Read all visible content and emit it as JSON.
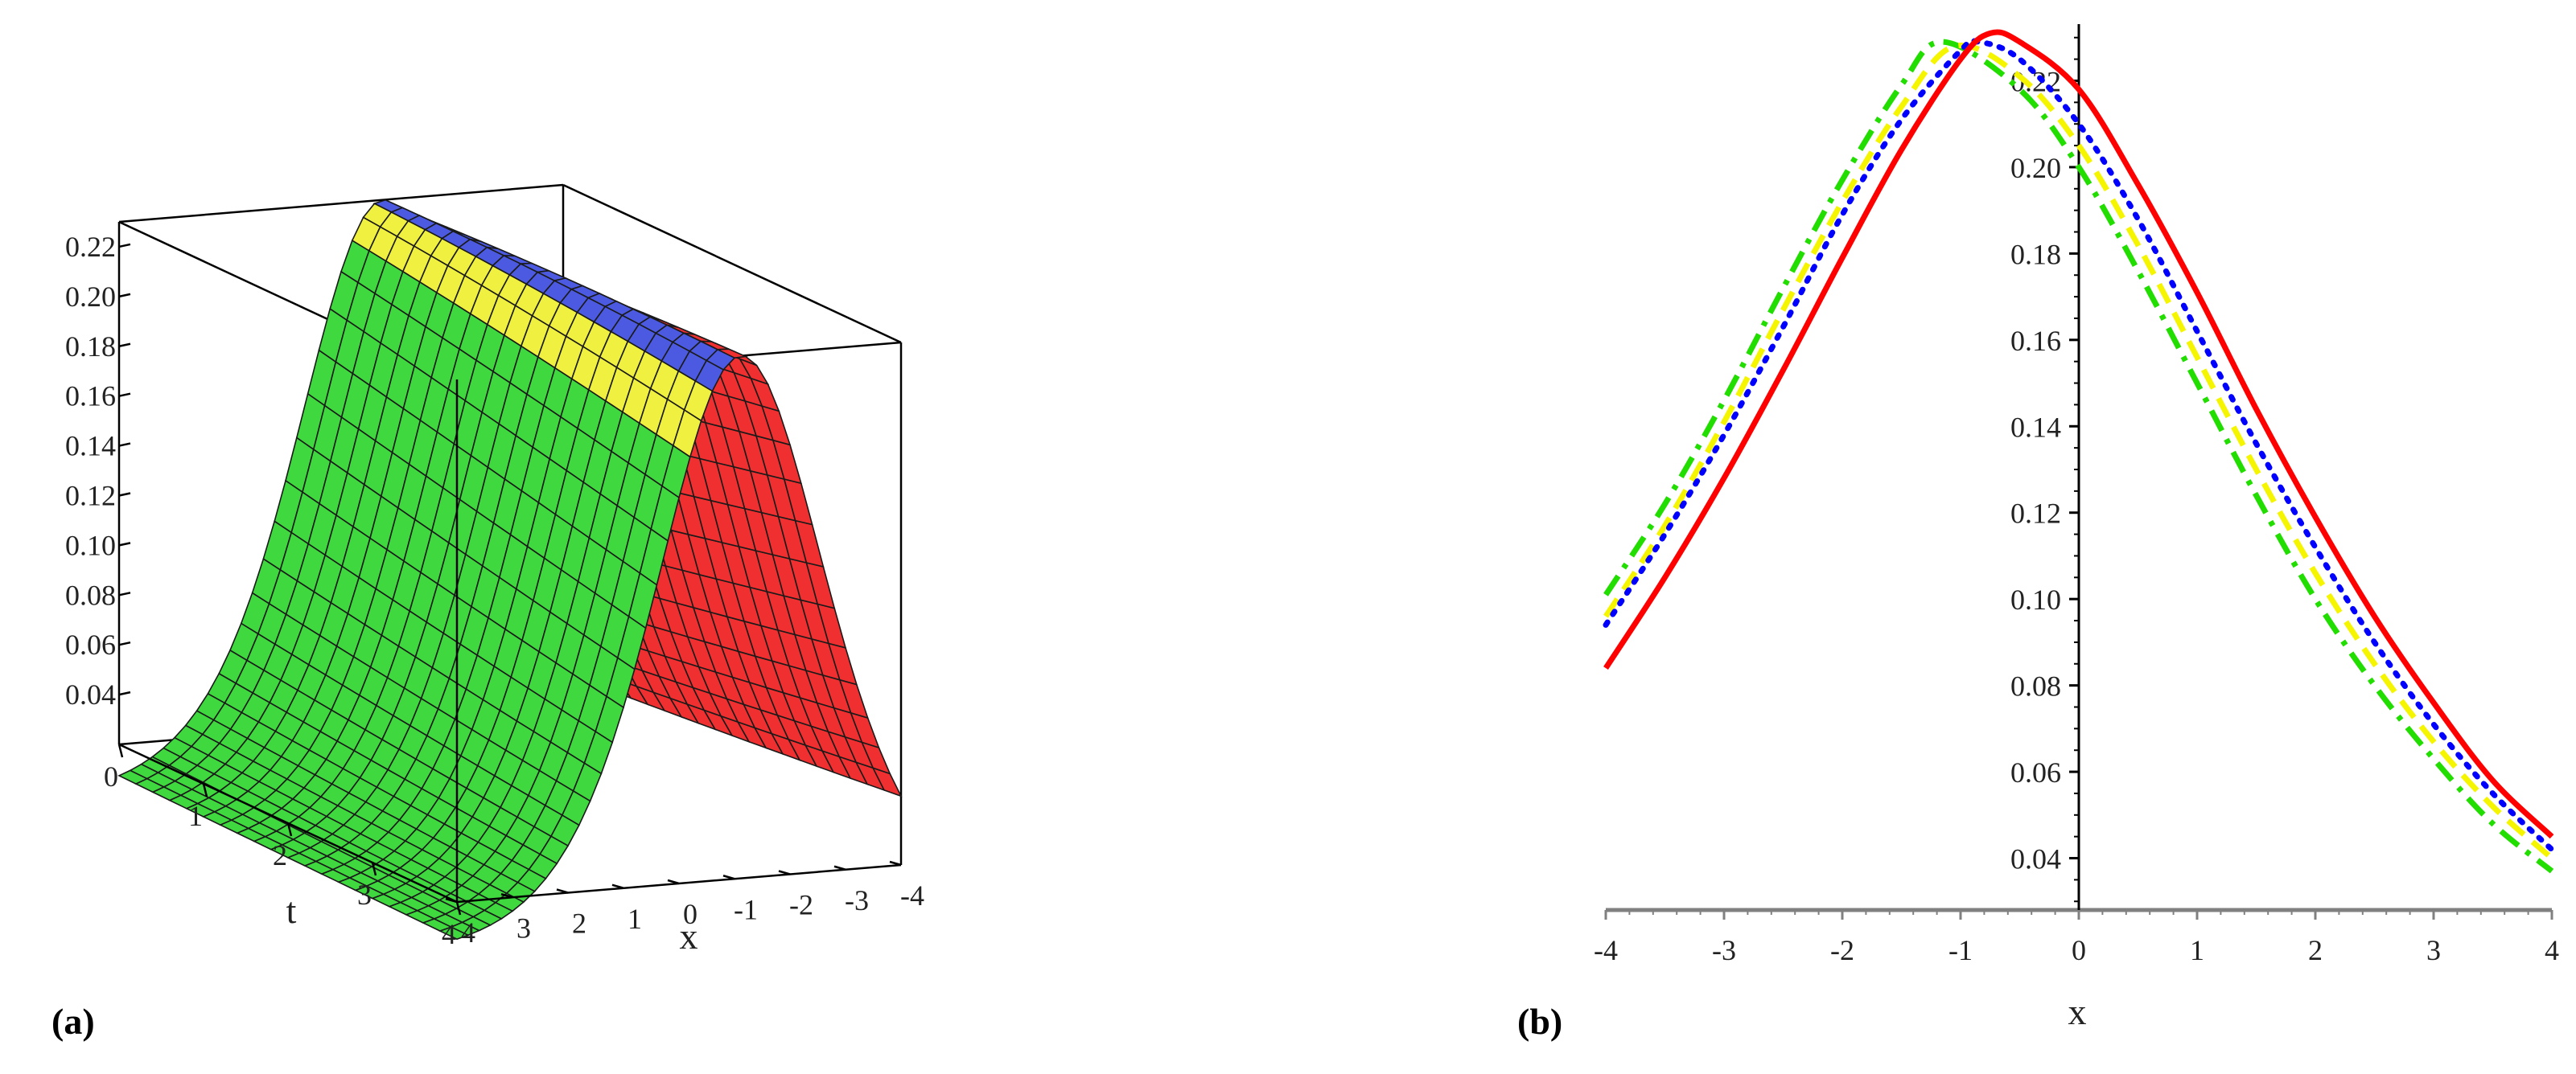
{
  "panel_a": {
    "label": "(a)"
  },
  "panel_b": {
    "label": "(b)"
  },
  "chart_data": [
    {
      "type": "surface",
      "xlabel": "x",
      "ylabel": "t",
      "zlabel": "",
      "xlim": [
        -4,
        4
      ],
      "tlim": [
        0,
        4
      ],
      "zlim": [
        0.02,
        0.23
      ],
      "x_ticks": [
        "-4",
        "-3",
        "-2",
        "-1",
        "0",
        "1",
        "2",
        "3",
        "4"
      ],
      "t_ticks": [
        "0",
        "1",
        "2",
        "3",
        "4"
      ],
      "z_ticks": [
        "0.22",
        "0.20",
        "0.18",
        "0.16",
        "0.14",
        "0.12",
        "0.10",
        "0.08",
        "0.06",
        "0.04"
      ],
      "surface_colors": [
        "#3fd83f",
        "#f0f040",
        "#4b5ae0",
        "#f03030"
      ],
      "peak_value": 0.23
    },
    {
      "type": "line",
      "xlabel": "x",
      "ylabel": "",
      "xlim": [
        -4,
        4
      ],
      "ylim": [
        0.028,
        0.232
      ],
      "x_ticks": [
        "-4",
        "-3",
        "-2",
        "-1",
        "0",
        "1",
        "2",
        "3",
        "4"
      ],
      "y_ticks": [
        "0.04",
        "0.06",
        "0.08",
        "0.10",
        "0.12",
        "0.14",
        "0.16",
        "0.18",
        "0.20",
        "0.22"
      ],
      "grid": false,
      "series": [
        {
          "color": "#ff0000",
          "style": "solid",
          "points": [
            [
              -4,
              0.084
            ],
            [
              -3.5,
              0.105
            ],
            [
              -3,
              0.128
            ],
            [
              -2.5,
              0.153
            ],
            [
              -2,
              0.179
            ],
            [
              -1.5,
              0.204
            ],
            [
              -1,
              0.225
            ],
            [
              -0.75,
              0.231
            ],
            [
              -0.5,
              0.229
            ],
            [
              0,
              0.218
            ],
            [
              0.5,
              0.196
            ],
            [
              1,
              0.171
            ],
            [
              1.5,
              0.144
            ],
            [
              2,
              0.119
            ],
            [
              2.5,
              0.096
            ],
            [
              3,
              0.076
            ],
            [
              3.5,
              0.058
            ],
            [
              4,
              0.045
            ]
          ]
        },
        {
          "color": "#0000ff",
          "style": "dotted",
          "points": [
            [
              -4,
              0.094
            ],
            [
              -3.5,
              0.115
            ],
            [
              -3,
              0.138
            ],
            [
              -2.5,
              0.163
            ],
            [
              -2,
              0.189
            ],
            [
              -1.5,
              0.211
            ],
            [
              -1,
              0.227
            ],
            [
              -0.85,
              0.229
            ],
            [
              -0.5,
              0.225
            ],
            [
              0,
              0.21
            ],
            [
              0.5,
              0.188
            ],
            [
              1,
              0.162
            ],
            [
              1.5,
              0.136
            ],
            [
              2,
              0.112
            ],
            [
              2.5,
              0.09
            ],
            [
              3,
              0.071
            ],
            [
              3.5,
              0.055
            ],
            [
              4,
              0.042
            ]
          ]
        },
        {
          "color": "#f5f500",
          "style": "dashed",
          "points": [
            [
              -4,
              0.096
            ],
            [
              -3.5,
              0.117
            ],
            [
              -3,
              0.141
            ],
            [
              -2.5,
              0.167
            ],
            [
              -2,
              0.192
            ],
            [
              -1.5,
              0.214
            ],
            [
              -1.05,
              0.228
            ],
            [
              -0.5,
              0.221
            ],
            [
              0,
              0.205
            ],
            [
              0.5,
              0.182
            ],
            [
              1,
              0.156
            ],
            [
              1.5,
              0.13
            ],
            [
              2,
              0.106
            ],
            [
              2.5,
              0.085
            ],
            [
              3,
              0.067
            ],
            [
              3.5,
              0.052
            ],
            [
              4,
              0.04
            ]
          ]
        },
        {
          "color": "#22dd00",
          "style": "dashdot",
          "points": [
            [
              -4,
              0.101
            ],
            [
              -3.5,
              0.122
            ],
            [
              -3,
              0.146
            ],
            [
              -2.5,
              0.172
            ],
            [
              -2,
              0.197
            ],
            [
              -1.5,
              0.219
            ],
            [
              -1.15,
              0.229
            ],
            [
              -0.5,
              0.218
            ],
            [
              0,
              0.2
            ],
            [
              0.5,
              0.176
            ],
            [
              1,
              0.15
            ],
            [
              1.5,
              0.124
            ],
            [
              2,
              0.1
            ],
            [
              2.5,
              0.08
            ],
            [
              3,
              0.063
            ],
            [
              3.5,
              0.048
            ],
            [
              4,
              0.037
            ]
          ]
        }
      ]
    }
  ]
}
